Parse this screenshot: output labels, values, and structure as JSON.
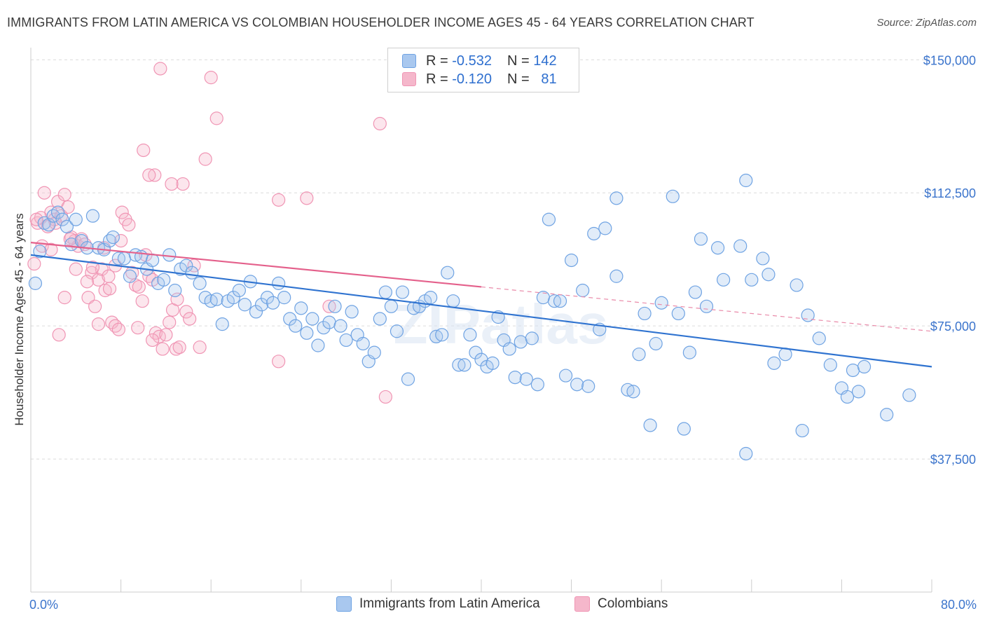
{
  "title": "IMMIGRANTS FROM LATIN AMERICA VS COLOMBIAN HOUSEHOLDER INCOME AGES 45 - 64 YEARS CORRELATION CHART",
  "source": "Source: ZipAtlas.com",
  "watermark": "ZIPatlas",
  "legend": {
    "rows": [
      {
        "r_label": "R =",
        "r_value": "-0.532",
        "n_label": "N =",
        "n_value": "142",
        "color": "#a9c8ef"
      },
      {
        "r_label": "R =",
        "r_value": "-0.120",
        "n_label": "N =",
        "n_value": "81",
        "color": "#f5b7cb"
      }
    ]
  },
  "bottom_legend": [
    {
      "label": "Immigrants from Latin America",
      "color": "#a9c8ef"
    },
    {
      "label": "Colombians",
      "color": "#f5b7cb"
    }
  ],
  "chart_data": {
    "type": "scatter",
    "title": "IMMIGRANTS FROM LATIN AMERICA VS COLOMBIAN HOUSEHOLDER INCOME AGES 45 - 64 YEARS CORRELATION CHART",
    "ylabel": "Householder Income Ages 45 - 64 years",
    "xlabel": "",
    "xlim": [
      0,
      80
    ],
    "ylim": [
      0,
      155000
    ],
    "x_tick_labels": [
      "0.0%",
      "80.0%"
    ],
    "y_ticks": [
      37500,
      75000,
      112500,
      150000
    ],
    "y_tick_labels": [
      "$37,500",
      "$75,000",
      "$112,500",
      "$150,000"
    ],
    "grid": "horizontal dashed",
    "legend_position": "top-center",
    "series": [
      {
        "name": "Immigrants from Latin America",
        "color": "#6fa3e3",
        "trend": {
          "x": [
            0,
            80
          ],
          "y": [
            95000,
            63500
          ],
          "style": "solid"
        },
        "points": [
          [
            0.4,
            87000
          ],
          [
            0.8,
            96000
          ],
          [
            1.2,
            104000
          ],
          [
            1.6,
            103500
          ],
          [
            2.0,
            106000
          ],
          [
            2.4,
            107000
          ],
          [
            2.8,
            105000
          ],
          [
            3.2,
            103000
          ],
          [
            3.6,
            98000
          ],
          [
            4.0,
            105000
          ],
          [
            4.5,
            99000
          ],
          [
            5.0,
            97000
          ],
          [
            5.5,
            106000
          ],
          [
            6.0,
            97000
          ],
          [
            6.5,
            96500
          ],
          [
            7.0,
            99000
          ],
          [
            7.3,
            100000
          ],
          [
            7.8,
            94000
          ],
          [
            8.3,
            94000
          ],
          [
            8.8,
            89000
          ],
          [
            9.3,
            95000
          ],
          [
            9.8,
            94500
          ],
          [
            10.3,
            91000
          ],
          [
            10.8,
            93500
          ],
          [
            11.3,
            87000
          ],
          [
            11.8,
            88000
          ],
          [
            12.3,
            95000
          ],
          [
            12.8,
            85000
          ],
          [
            13.3,
            91000
          ],
          [
            13.8,
            92000
          ],
          [
            14.3,
            90000
          ],
          [
            15.0,
            87000
          ],
          [
            15.5,
            83000
          ],
          [
            16.0,
            82000
          ],
          [
            16.5,
            82500
          ],
          [
            17.0,
            75500
          ],
          [
            17.5,
            82000
          ],
          [
            18.0,
            83000
          ],
          [
            18.5,
            85000
          ],
          [
            19.0,
            81000
          ],
          [
            19.5,
            87500
          ],
          [
            20.0,
            79000
          ],
          [
            20.5,
            81000
          ],
          [
            21.0,
            83000
          ],
          [
            21.5,
            81500
          ],
          [
            22.0,
            87000
          ],
          [
            22.5,
            83000
          ],
          [
            23.0,
            77000
          ],
          [
            23.5,
            75000
          ],
          [
            24.0,
            80000
          ],
          [
            24.5,
            73000
          ],
          [
            25.0,
            77000
          ],
          [
            25.5,
            69500
          ],
          [
            26.0,
            74500
          ],
          [
            26.5,
            76000
          ],
          [
            27.0,
            80500
          ],
          [
            27.5,
            75000
          ],
          [
            28.0,
            71000
          ],
          [
            28.5,
            79000
          ],
          [
            29.0,
            72500
          ],
          [
            29.5,
            70000
          ],
          [
            30.0,
            65000
          ],
          [
            30.5,
            67500
          ],
          [
            31.0,
            77000
          ],
          [
            31.5,
            84500
          ],
          [
            32.0,
            80500
          ],
          [
            32.5,
            73500
          ],
          [
            33.0,
            84500
          ],
          [
            33.5,
            60000
          ],
          [
            34.0,
            80000
          ],
          [
            34.5,
            80500
          ],
          [
            35.0,
            82000
          ],
          [
            35.5,
            83000
          ],
          [
            36.0,
            72000
          ],
          [
            36.5,
            72500
          ],
          [
            37.0,
            90000
          ],
          [
            37.5,
            82000
          ],
          [
            38.0,
            64000
          ],
          [
            38.5,
            64000
          ],
          [
            39.0,
            72500
          ],
          [
            39.5,
            67500
          ],
          [
            40.0,
            65500
          ],
          [
            40.5,
            63500
          ],
          [
            41.0,
            64500
          ],
          [
            41.5,
            77500
          ],
          [
            42.0,
            71000
          ],
          [
            42.5,
            68500
          ],
          [
            43.0,
            60500
          ],
          [
            43.5,
            70500
          ],
          [
            44.0,
            60000
          ],
          [
            44.5,
            71500
          ],
          [
            45.0,
            58500
          ],
          [
            45.5,
            83000
          ],
          [
            46.0,
            105000
          ],
          [
            46.5,
            82000
          ],
          [
            47.0,
            82000
          ],
          [
            47.5,
            61000
          ],
          [
            48.0,
            93500
          ],
          [
            48.5,
            58500
          ],
          [
            49.0,
            85000
          ],
          [
            49.5,
            58000
          ],
          [
            50.0,
            101000
          ],
          [
            50.5,
            74000
          ],
          [
            51.0,
            102500
          ],
          [
            52.0,
            111000
          ],
          [
            52.0,
            89000
          ],
          [
            53.0,
            57000
          ],
          [
            53.5,
            56500
          ],
          [
            54.0,
            67000
          ],
          [
            54.5,
            78500
          ],
          [
            55.0,
            47000
          ],
          [
            55.5,
            70000
          ],
          [
            56.0,
            81500
          ],
          [
            57.0,
            111500
          ],
          [
            57.5,
            78500
          ],
          [
            58.0,
            46000
          ],
          [
            58.5,
            67500
          ],
          [
            59.0,
            84500
          ],
          [
            59.5,
            99500
          ],
          [
            60.0,
            80500
          ],
          [
            61.0,
            97000
          ],
          [
            61.5,
            88000
          ],
          [
            63.0,
            97500
          ],
          [
            63.5,
            39000
          ],
          [
            63.5,
            116000
          ],
          [
            64.0,
            88000
          ],
          [
            65.0,
            94000
          ],
          [
            65.5,
            89500
          ],
          [
            66.0,
            64500
          ],
          [
            67.0,
            67000
          ],
          [
            68.0,
            86500
          ],
          [
            68.5,
            45500
          ],
          [
            69.0,
            78000
          ],
          [
            70.0,
            71500
          ],
          [
            71.0,
            64000
          ],
          [
            72.0,
            57500
          ],
          [
            72.5,
            55000
          ],
          [
            73.0,
            62500
          ],
          [
            73.5,
            56500
          ],
          [
            74.0,
            63500
          ],
          [
            76.0,
            50000
          ],
          [
            78.0,
            55500
          ]
        ]
      },
      {
        "name": "Colombians",
        "color": "#f095b4",
        "trend": {
          "x": [
            0,
            40
          ],
          "y": [
            98500,
            86000
          ],
          "style": "solid"
        },
        "trend_extended": {
          "x": [
            40,
            80
          ],
          "y": [
            86000,
            73500
          ],
          "style": "dashed"
        },
        "points": [
          [
            0.3,
            92500
          ],
          [
            0.6,
            104000
          ],
          [
            0.9,
            105500
          ],
          [
            1.2,
            112500
          ],
          [
            1.5,
            103000
          ],
          [
            1.8,
            107000
          ],
          [
            2.1,
            105000
          ],
          [
            2.4,
            110000
          ],
          [
            2.7,
            106000
          ],
          [
            3.0,
            112000
          ],
          [
            3.3,
            108500
          ],
          [
            3.6,
            100000
          ],
          [
            3.9,
            99000
          ],
          [
            4.2,
            97500
          ],
          [
            4.5,
            99500
          ],
          [
            4.8,
            98000
          ],
          [
            5.1,
            83000
          ],
          [
            5.4,
            90000
          ],
          [
            5.7,
            80500
          ],
          [
            6.0,
            88000
          ],
          [
            6.3,
            91000
          ],
          [
            6.6,
            85000
          ],
          [
            6.9,
            89000
          ],
          [
            7.2,
            76000
          ],
          [
            7.5,
            75000
          ],
          [
            7.8,
            74000
          ],
          [
            8.1,
            107000
          ],
          [
            8.4,
            105000
          ],
          [
            8.7,
            103500
          ],
          [
            9.0,
            90000
          ],
          [
            9.3,
            86500
          ],
          [
            9.6,
            86000
          ],
          [
            9.9,
            82000
          ],
          [
            10.2,
            95000
          ],
          [
            10.5,
            89000
          ],
          [
            10.8,
            88000
          ],
          [
            11.1,
            73000
          ],
          [
            11.4,
            72000
          ],
          [
            11.7,
            68500
          ],
          [
            12.0,
            72500
          ],
          [
            12.3,
            76000
          ],
          [
            12.6,
            79500
          ],
          [
            12.9,
            68500
          ],
          [
            13.2,
            69000
          ],
          [
            13.5,
            115000
          ],
          [
            13.8,
            79000
          ],
          [
            14.1,
            77000
          ],
          [
            11.0,
            117500
          ],
          [
            10.0,
            124500
          ],
          [
            11.5,
            147500
          ],
          [
            16.0,
            145000
          ],
          [
            16.5,
            133500
          ],
          [
            15.5,
            122000
          ],
          [
            10.5,
            117500
          ],
          [
            12.5,
            115000
          ],
          [
            22.0,
            110500
          ],
          [
            24.5,
            111000
          ],
          [
            31.0,
            132000
          ],
          [
            22.0,
            65000
          ],
          [
            31.5,
            55000
          ],
          [
            26.5,
            80500
          ],
          [
            3.0,
            83000
          ],
          [
            2.5,
            72500
          ],
          [
            1.0,
            97500
          ],
          [
            0.5,
            105000
          ],
          [
            4.0,
            91000
          ],
          [
            6.0,
            75500
          ],
          [
            7.0,
            85500
          ],
          [
            8.0,
            99000
          ],
          [
            9.5,
            74500
          ],
          [
            3.5,
            99500
          ],
          [
            5.0,
            87500
          ],
          [
            6.5,
            97000
          ],
          [
            13.0,
            82500
          ],
          [
            14.5,
            92000
          ],
          [
            1.8,
            96500
          ],
          [
            2.2,
            104000
          ],
          [
            7.5,
            92000
          ],
          [
            10.8,
            71000
          ],
          [
            5.5,
            91500
          ],
          [
            15.0,
            69000
          ]
        ]
      }
    ]
  }
}
